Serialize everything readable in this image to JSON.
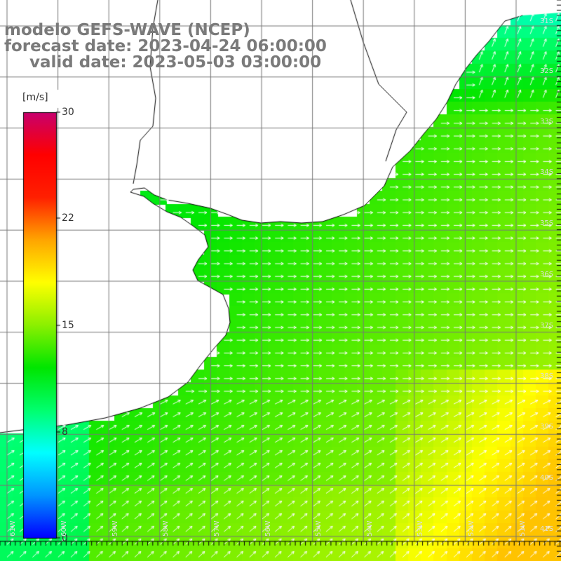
{
  "title": {
    "line1": "modelo GEFS-WAVE (NCEP)",
    "line2": "forecast date: 2023-04-24 06:00:00",
    "line3": "valid date: 2023-05-03 03:00:00"
  },
  "colorbar": {
    "unit": "[m/s]",
    "ticks": [
      "30",
      "22",
      "15",
      "8",
      "0"
    ],
    "colors": [
      "#0000ff",
      "#0096ff",
      "#00ffff",
      "#00ff6e",
      "#00e600",
      "#8cf000",
      "#ffff00",
      "#ffa500",
      "#ff2000",
      "#ff0000",
      "#c8006e"
    ]
  },
  "grid": {
    "lat_labels": [
      "32S",
      "33S",
      "34S",
      "35S",
      "36S",
      "37S",
      "38S",
      "39S",
      "40S",
      "41S"
    ],
    "lon_labels": [
      "61W",
      "60W",
      "59W",
      "58W",
      "57W",
      "56W",
      "55W",
      "54W",
      "53W",
      "52W",
      "51W"
    ],
    "top_right_label": "31S"
  },
  "field": {
    "quantity": "wind speed",
    "arrow_color": "#ffffff",
    "land_color": "#ffffff",
    "coast_color": "#000000"
  }
}
